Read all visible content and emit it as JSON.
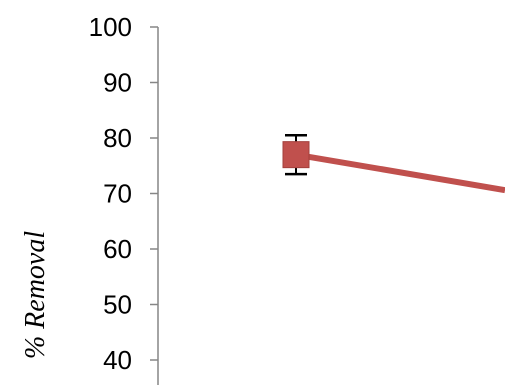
{
  "chart_data": {
    "type": "line",
    "ylabel": "% Removal",
    "ylim": [
      40,
      100
    ],
    "y_ticks": [
      "100",
      "90",
      "80",
      "70",
      "60",
      "50",
      "40"
    ],
    "series": [
      {
        "color": "#C0504D",
        "points": [
          {
            "y": 77,
            "error": 3.5
          },
          {
            "y": 70.6
          }
        ]
      }
    ]
  }
}
